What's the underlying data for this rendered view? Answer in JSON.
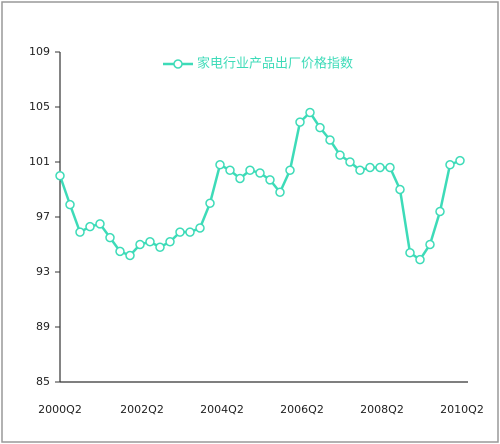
{
  "chart_data": {
    "type": "line",
    "categories": [
      "2000Q2",
      null,
      null,
      null,
      null,
      null,
      null,
      null,
      "2002Q2",
      null,
      null,
      null,
      null,
      null,
      null,
      null,
      "2004Q2",
      null,
      null,
      null,
      null,
      null,
      null,
      null,
      "2006Q2",
      null,
      null,
      null,
      null,
      null,
      null,
      null,
      "2008Q2",
      null,
      null,
      null,
      null,
      null,
      null,
      null,
      "2010Q2"
    ],
    "series": [
      {
        "name": "家电行业产品出厂价格指数",
        "color": "#3ddbb8",
        "values": [
          100.0,
          97.9,
          95.9,
          96.3,
          96.5,
          95.5,
          94.5,
          94.2,
          95.0,
          95.2,
          94.8,
          95.2,
          95.9,
          95.9,
          96.2,
          98.0,
          100.8,
          100.4,
          99.8,
          100.4,
          100.2,
          99.7,
          98.8,
          100.4,
          103.9,
          104.6,
          103.5,
          102.6,
          101.5,
          101.0,
          100.4,
          100.6,
          100.6,
          100.6,
          99.0,
          94.4,
          93.9,
          95.0,
          97.4,
          100.8,
          101.1
        ]
      }
    ],
    "ylim": [
      85,
      109
    ],
    "yticks": [
      85,
      89,
      93,
      97,
      101,
      105,
      109
    ],
    "legend": "top",
    "grid": false
  }
}
